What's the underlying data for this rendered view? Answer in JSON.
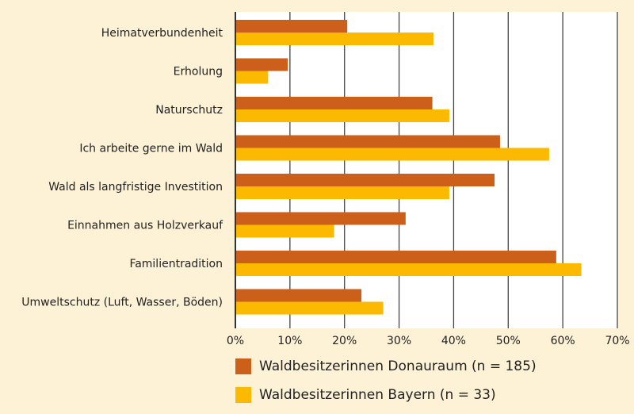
{
  "chart_data": {
    "type": "bar",
    "orientation": "horizontal",
    "categories": [
      "Heimatverbundenheit",
      "Erholung",
      "Naturschutz",
      "Ich arbeite gerne im Wald",
      "Wald als langfristige Investition",
      "Einnahmen aus Holzverkauf",
      "Familientradition",
      "Umweltschutz (Luft, Wasser, Böden)"
    ],
    "series": [
      {
        "name": "Waldbesitzerinnen Donauraum (n = 185)",
        "color": "#cc5f1a",
        "values": [
          20.5,
          9.6,
          36.1,
          48.5,
          47.5,
          31.2,
          58.8,
          23.1
        ]
      },
      {
        "name": "Waldbesitzerinnen Bayern (n = 33)",
        "color": "#fbb900",
        "values": [
          36.3,
          6.0,
          39.2,
          57.5,
          39.2,
          18.1,
          63.4,
          27.1
        ]
      }
    ],
    "xlim": [
      0,
      70
    ],
    "xticks": [
      "0%",
      "10%",
      "20%",
      "30%",
      "40%",
      "50%",
      "60%",
      "70%"
    ],
    "grid": true,
    "legend": "bottom"
  }
}
